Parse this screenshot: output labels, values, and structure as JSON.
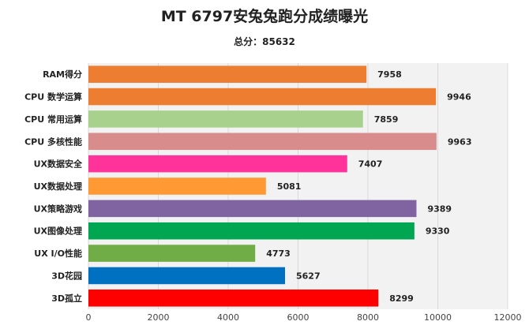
{
  "chart_data": {
    "type": "bar",
    "orientation": "horizontal",
    "title": "MT 6797安兔兔跑分成绩曝光",
    "subtitle": "总分：85632",
    "categories": [
      "RAM得分",
      "CPU 数学运算",
      "CPU 常用运算",
      "CPU 多核性能",
      "UX数据安全",
      "UX数据处理",
      "UX策略游戏",
      "UX图像处理",
      "UX I/O性能",
      "3D花园",
      "3D孤立"
    ],
    "values": [
      7958,
      9946,
      7859,
      9963,
      7407,
      5081,
      9389,
      9330,
      4773,
      5627,
      8299
    ],
    "colors": [
      "#ed7d31",
      "#ed7d31",
      "#a9d18e",
      "#d98c8c",
      "#ff3399",
      "#ff9933",
      "#8064a2",
      "#00a651",
      "#70ad47",
      "#0070c0",
      "#ff0000"
    ],
    "xlim": [
      0,
      12000
    ],
    "xticks": [
      "0",
      "2000",
      "4000",
      "6000",
      "8000",
      "10000",
      "12000"
    ],
    "grid": "vertical",
    "legend": "none"
  }
}
